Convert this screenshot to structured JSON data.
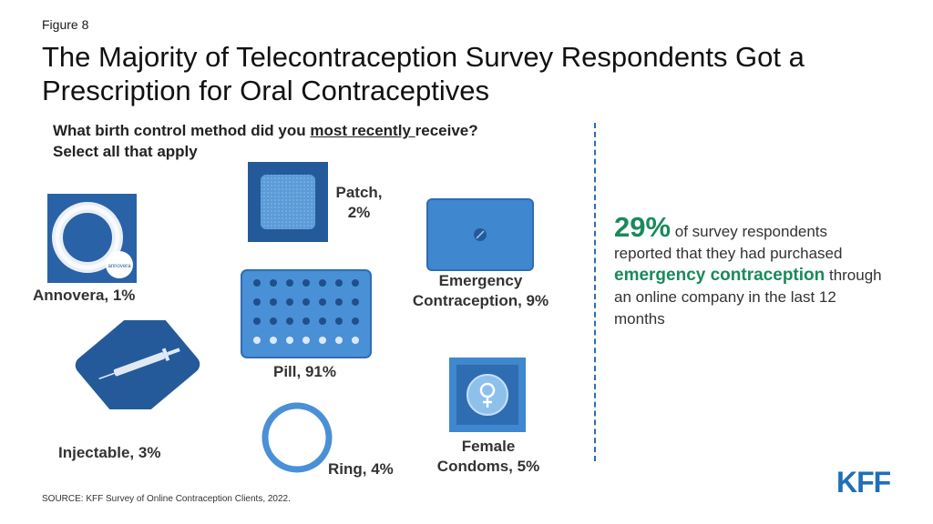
{
  "figure_label": "Figure 8",
  "title": "The Majority of Telecontraception Survey Respondents Got a Prescription for Oral Contraceptives",
  "question": {
    "part1": "What birth control method did you ",
    "underlined": "most recently ",
    "part2": "receive?",
    "line2": "Select all that apply"
  },
  "chart_data": {
    "type": "pictogram",
    "title": "The Majority of Telecontraception Survey Respondents Got a Prescription for Oral Contraceptives",
    "subtitle": "What birth control method did you most recently receive? Select all that apply",
    "unit": "%",
    "categories": [
      "Annovera",
      "Patch",
      "Emergency Contraception",
      "Pill",
      "Injectable",
      "Ring",
      "Female Condoms"
    ],
    "values": [
      1,
      2,
      9,
      91,
      3,
      4,
      5
    ]
  },
  "labels": {
    "annovera": [
      "Annovera, 1%"
    ],
    "patch": [
      "Patch,",
      "2%"
    ],
    "emergency": [
      "Emergency",
      "Contraception, 9%"
    ],
    "pill": [
      "Pill, 91%"
    ],
    "injectable": [
      "Injectable, 3%"
    ],
    "ring": [
      "Ring, 4%"
    ],
    "female_condoms": [
      "Female",
      "Condoms, 5%"
    ]
  },
  "annovera_box_text": "annovera",
  "callout": {
    "percent": "29%",
    "text1": " of survey respondents reported that they had purchased ",
    "highlight": "emergency contraception",
    "text2": " through an online company in the last 12 months"
  },
  "source": "SOURCE: KFF Survey of Online Contraception Clients, 2022.",
  "logo": "KFF",
  "colors": {
    "accent_blue": "#2f6db3",
    "icon_blue": "#3f87cf",
    "dark_blue": "#245a9a",
    "highlight_green": "#1a8a5a"
  }
}
